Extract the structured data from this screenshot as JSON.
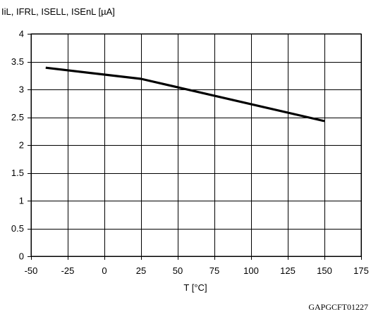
{
  "chart_data": {
    "type": "line",
    "title": "",
    "ylabel": "IiL, IFRL, ISELL, ISEnL [µA]",
    "xlabel": "T [°C]",
    "xlim": [
      -50,
      175
    ],
    "ylim": [
      0,
      4
    ],
    "x_ticks": [
      -50,
      -25,
      0,
      25,
      50,
      75,
      100,
      125,
      150,
      175
    ],
    "y_ticks": [
      0,
      0.5,
      1,
      1.5,
      2,
      2.5,
      3,
      3.5,
      4
    ],
    "x_tick_labels": [
      "-50",
      "-25",
      "0",
      "25",
      "50",
      "75",
      "100",
      "125",
      "150",
      "175"
    ],
    "y_tick_labels": [
      "0",
      "0.5",
      "1",
      "1.5",
      "2",
      "2.5",
      "3",
      "3.5",
      "4"
    ],
    "grid": true,
    "series": [
      {
        "x": [
          -40,
          25,
          150
        ],
        "y": [
          3.39,
          3.19,
          2.43
        ],
        "color": "#000000"
      }
    ]
  },
  "figure_id": "GAPGCFT01227"
}
